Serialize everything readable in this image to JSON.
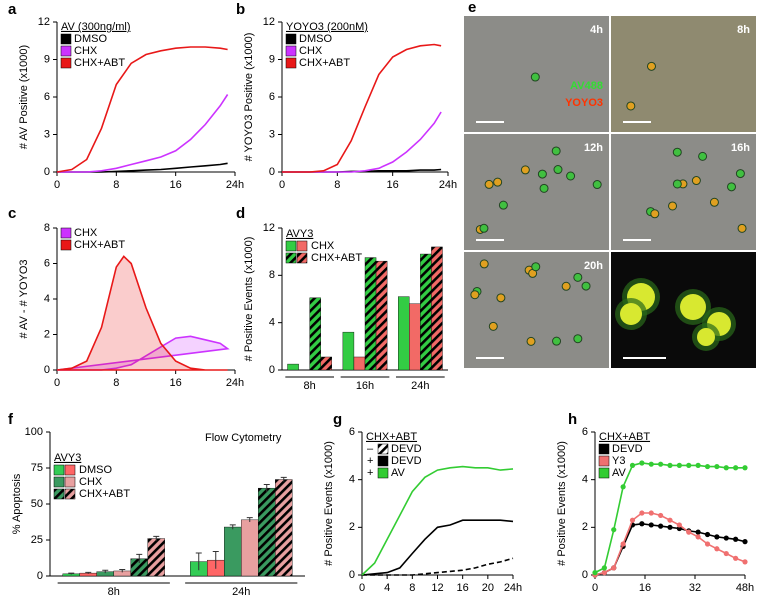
{
  "chart_data": [
    {
      "panel": "a",
      "type": "line",
      "legend_title": "AV (300ng/ml)",
      "y_label": "# AV Positive (x1000)",
      "x": [
        0,
        2,
        4,
        6,
        8,
        10,
        12,
        14,
        16,
        18,
        20,
        22,
        23
      ],
      "series": [
        {
          "name": "DMSO",
          "color": "#000000",
          "values": [
            0,
            0,
            0,
            0,
            0.05,
            0.1,
            0.15,
            0.2,
            0.3,
            0.4,
            0.5,
            0.6,
            0.7
          ]
        },
        {
          "name": "CHX",
          "color": "#cc33ff",
          "values": [
            0,
            0,
            0,
            0.1,
            0.3,
            0.6,
            0.9,
            1.2,
            1.7,
            2.6,
            3.8,
            5.3,
            6.2
          ]
        },
        {
          "name": "CHX+ABT",
          "color": "#e81818",
          "values": [
            0,
            0.2,
            1,
            3.5,
            7,
            8.7,
            9.4,
            9.7,
            9.9,
            10,
            10,
            9.9,
            9.8
          ]
        }
      ],
      "xlim": [
        0,
        24
      ],
      "ylim": [
        0,
        12
      ],
      "xticks": [
        0,
        8,
        16,
        {
          "value": 24,
          "label": "24h"
        }
      ],
      "yticks": [
        0,
        3,
        6,
        9,
        12
      ]
    },
    {
      "panel": "b",
      "type": "line",
      "legend_title": "YOYO3 (200nM)",
      "y_label": "# YOYO3 Positive (x1000)",
      "x": [
        0,
        2,
        4,
        6,
        8,
        10,
        12,
        14,
        16,
        18,
        20,
        22,
        23
      ],
      "series": [
        {
          "name": "DMSO",
          "color": "#000000",
          "values": [
            0,
            0,
            0,
            0,
            0,
            0.05,
            0.05,
            0.1,
            0.1,
            0.1,
            0.15,
            0.15,
            0.2
          ]
        },
        {
          "name": "CHX",
          "color": "#cc33ff",
          "values": [
            0,
            0,
            0,
            0,
            0,
            0,
            0.1,
            0.3,
            0.8,
            1.6,
            2.6,
            3.9,
            4.8
          ]
        },
        {
          "name": "CHX+ABT",
          "color": "#e81818",
          "values": [
            0,
            0,
            0,
            0.1,
            0.6,
            2.5,
            5.2,
            7.8,
            9.2,
            9.8,
            10.1,
            10.2,
            10.1
          ]
        }
      ],
      "xlim": [
        0,
        24
      ],
      "ylim": [
        0,
        12
      ],
      "xticks": [
        0,
        8,
        16,
        {
          "value": 24,
          "label": "24h"
        }
      ],
      "yticks": [
        0,
        3,
        6,
        9,
        12
      ]
    },
    {
      "panel": "c",
      "type": "area",
      "y_label": "# AV - # YOYO3",
      "x": [
        0,
        2,
        4,
        6,
        8,
        9,
        10,
        12,
        14,
        16,
        18,
        20,
        22,
        23
      ],
      "series": [
        {
          "name": "CHX",
          "color": "#cc33ff",
          "values": [
            0,
            0,
            0,
            0,
            0.1,
            0.2,
            0.3,
            0.8,
            1.3,
            1.8,
            1.9,
            1.7,
            1.5,
            1.2
          ]
        },
        {
          "name": "CHX+ABT",
          "color": "#e81818",
          "values": [
            0,
            0.1,
            0.5,
            2.4,
            5.8,
            6.4,
            6,
            3.5,
            1.5,
            0.5,
            0.1,
            0,
            0,
            0
          ]
        }
      ],
      "xlim": [
        0,
        24
      ],
      "ylim": [
        0,
        8
      ],
      "xticks": [
        0,
        8,
        16,
        {
          "value": 24,
          "label": "24h"
        }
      ],
      "yticks": [
        0,
        2,
        4,
        6,
        8
      ]
    },
    {
      "panel": "d",
      "type": "bar",
      "legend_title": "AVY3",
      "legend_entries": [
        "CHX",
        "CHX+ABT"
      ],
      "y_label": "# Positive Events (x1000)",
      "categories": [
        "8h",
        "16h",
        "24h"
      ],
      "series": [
        {
          "color": "#33cc44",
          "hatch": false,
          "values": [
            0.5,
            3.2,
            6.2
          ]
        },
        {
          "color": "#f26a66",
          "hatch": false,
          "values": [
            0,
            1.1,
            5.6
          ]
        },
        {
          "color": "#33cc44",
          "hatch": true,
          "values": [
            6.1,
            9.5,
            9.8
          ]
        },
        {
          "color": "#f26a66",
          "hatch": true,
          "values": [
            1.1,
            9.2,
            10.4
          ]
        }
      ],
      "ylim": [
        0,
        12
      ],
      "yticks": [
        0,
        4,
        8,
        12
      ]
    },
    {
      "panel": "f",
      "type": "bar",
      "annotation": "Flow Cytometry",
      "legend_title": "AVY3",
      "legend_entries": [
        "DMSO",
        "CHX",
        "CHX+ABT"
      ],
      "y_label": "% Apoptosis",
      "categories": [
        "8h",
        "24h"
      ],
      "series": [
        {
          "color": "#33cc55",
          "hatch": false,
          "values": [
            1.5,
            10
          ],
          "errors": [
            0.5,
            6
          ]
        },
        {
          "color": "#ff6666",
          "hatch": false,
          "values": [
            2,
            11
          ],
          "errors": [
            0.5,
            6
          ]
        },
        {
          "color": "#3a9a60",
          "hatch": false,
          "values": [
            3,
            34
          ],
          "errors": [
            1,
            1.5
          ]
        },
        {
          "color": "#e8a0a0",
          "hatch": false,
          "values": [
            3.5,
            39
          ],
          "errors": [
            1,
            1.5
          ]
        },
        {
          "color": "#3a9a60",
          "hatch": true,
          "values": [
            12,
            61
          ],
          "errors": [
            3,
            2.5
          ]
        },
        {
          "color": "#e8a0a0",
          "hatch": true,
          "values": [
            26,
            67
          ],
          "errors": [
            1.5,
            1.5
          ]
        }
      ],
      "ylim": [
        0,
        100
      ],
      "yticks": [
        0,
        25,
        50,
        75,
        100
      ]
    },
    {
      "panel": "g",
      "type": "line",
      "legend_title": "CHX+ABT",
      "y_label": "# Positive Events (x1000)",
      "x": [
        0,
        2,
        4,
        6,
        8,
        10,
        12,
        14,
        16,
        18,
        20,
        22,
        24
      ],
      "series": [
        {
          "prefix": "–",
          "name": "DEVD",
          "color": "#000000",
          "dashed": true,
          "values": [
            0,
            0,
            0,
            0,
            0,
            0.05,
            0.1,
            0.15,
            0.2,
            0.3,
            0.45,
            0.55,
            0.7
          ]
        },
        {
          "prefix": "+",
          "name": "DEVD",
          "color": "#000000",
          "values": [
            0,
            0.05,
            0.1,
            0.3,
            0.9,
            1.5,
            2,
            2.1,
            2.3,
            2.3,
            2.3,
            2.3,
            2.25
          ]
        },
        {
          "prefix": "+",
          "name": "AV",
          "color": "#33cc33",
          "values": [
            0,
            0.5,
            1.5,
            2.5,
            3.5,
            4.1,
            4.4,
            4.5,
            4.55,
            4.5,
            4.5,
            4.4,
            4.45
          ]
        }
      ],
      "xlim": [
        0,
        24
      ],
      "ylim": [
        0,
        6
      ],
      "xticks": [
        0,
        4,
        8,
        12,
        16,
        20,
        {
          "value": 24,
          "label": "24h"
        }
      ],
      "yticks": [
        0,
        2,
        4,
        6
      ]
    },
    {
      "panel": "h",
      "type": "line",
      "markers": true,
      "legend_title": "CHX+ABT",
      "y_label": "# Positive Events (x1000)",
      "x": [
        0,
        3,
        6,
        9,
        12,
        15,
        18,
        21,
        24,
        27,
        30,
        33,
        36,
        39,
        42,
        45,
        48
      ],
      "series": [
        {
          "name": "DEVD",
          "color": "#000000",
          "values": [
            0,
            0.1,
            0.3,
            1.2,
            2.1,
            2.15,
            2.1,
            2.05,
            2.0,
            1.95,
            1.85,
            1.8,
            1.7,
            1.6,
            1.55,
            1.5,
            1.4
          ]
        },
        {
          "name": "Y3",
          "color": "#f07070",
          "values": [
            0,
            0.1,
            0.3,
            1.3,
            2.3,
            2.6,
            2.6,
            2.5,
            2.3,
            2.1,
            1.8,
            1.6,
            1.3,
            1.1,
            0.9,
            0.7,
            0.55
          ]
        },
        {
          "name": "AV",
          "color": "#33cc33",
          "values": [
            0.1,
            0.3,
            1.9,
            3.7,
            4.6,
            4.7,
            4.65,
            4.65,
            4.6,
            4.6,
            4.6,
            4.6,
            4.55,
            4.55,
            4.5,
            4.5,
            4.5
          ]
        }
      ],
      "xlim": [
        0,
        48
      ],
      "ylim": [
        0,
        6
      ],
      "xticks": [
        0,
        16,
        32,
        {
          "value": 48,
          "label": "48h"
        }
      ],
      "yticks": [
        0,
        2,
        4,
        6
      ]
    }
  ],
  "image_panel": {
    "panel": "e",
    "time_labels": [
      "4h",
      "8h",
      "12h",
      "16h",
      "20h"
    ],
    "stain_labels": [
      {
        "text": "AV488",
        "color": "#33dd33"
      },
      {
        "text": "YOYO3",
        "color": "#ff3300"
      }
    ]
  }
}
